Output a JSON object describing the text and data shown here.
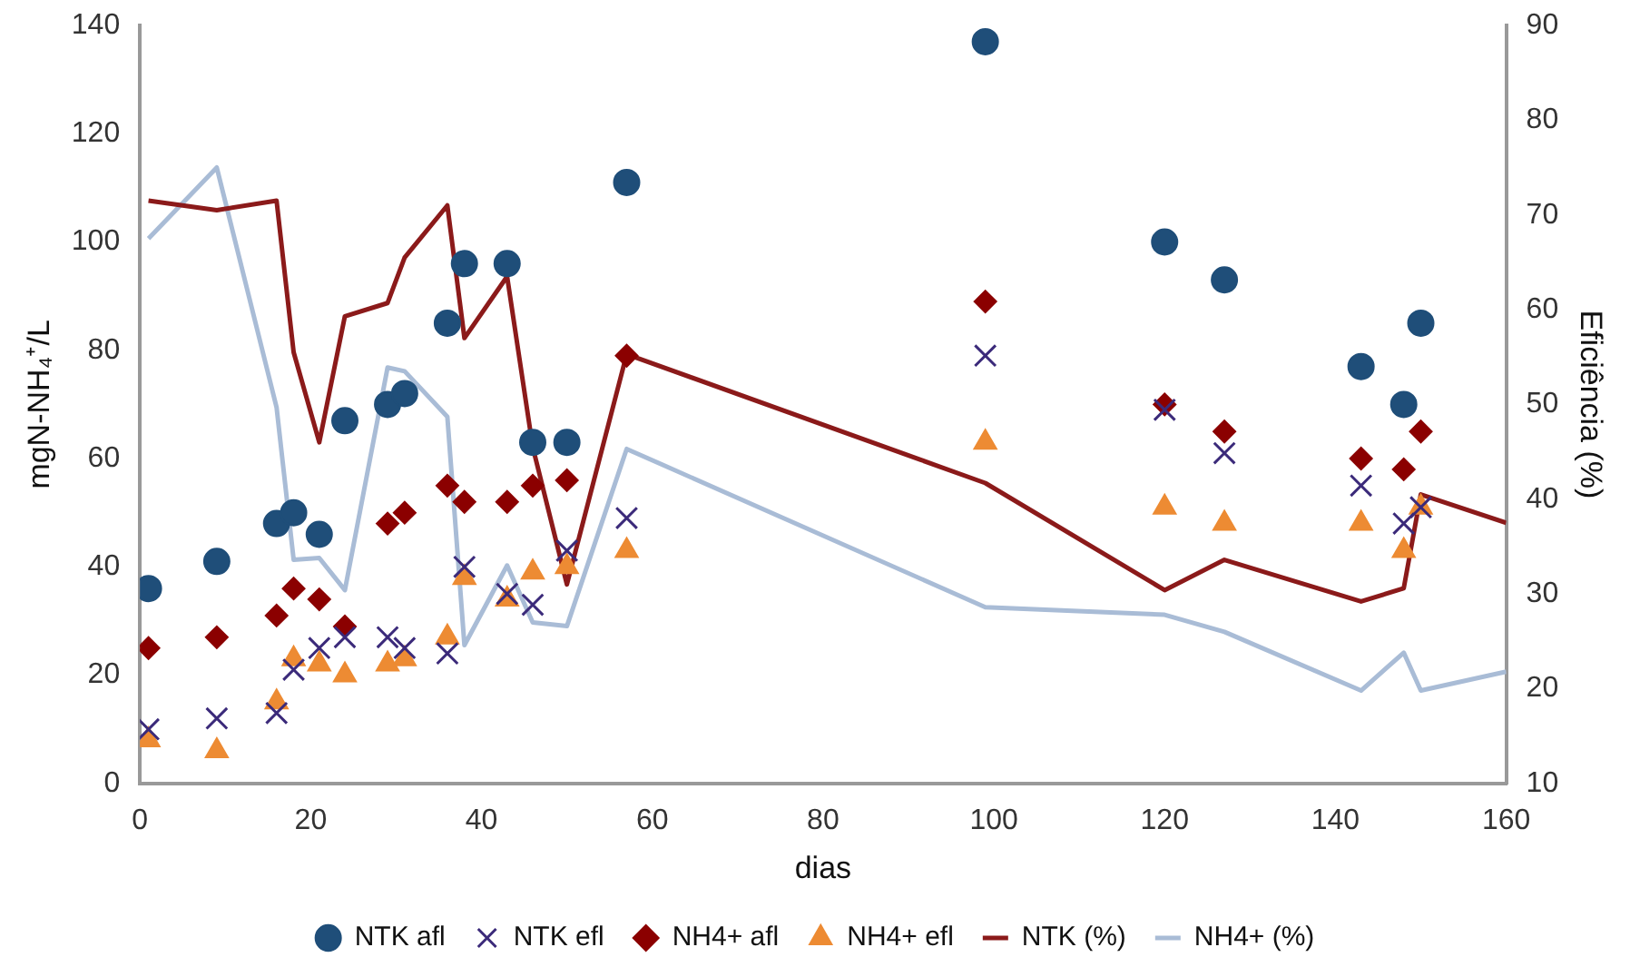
{
  "chart_data": {
    "type": "scatter",
    "xlabel": "dias",
    "ylabel": "mgN-NH₄⁺/L",
    "y2label": "Eficiência (%)",
    "xlim": [
      0,
      160
    ],
    "xticks": [
      0,
      20,
      40,
      60,
      80,
      100,
      120,
      140,
      160
    ],
    "ylim": [
      0,
      140
    ],
    "yticks": [
      0,
      20,
      40,
      60,
      80,
      100,
      120,
      140
    ],
    "y2lim": [
      10,
      90
    ],
    "y2ticks": [
      10,
      20,
      30,
      40,
      50,
      60,
      70,
      80,
      90
    ],
    "grid": false,
    "legend": "bottom",
    "x": [
      1,
      9,
      16,
      18,
      21,
      24,
      29,
      31,
      36,
      38,
      43,
      46,
      50,
      57,
      99,
      120,
      127,
      143,
      148,
      150
    ],
    "series": [
      {
        "name": "NTK afl",
        "type": "scatter",
        "marker": "circle",
        "color": "#1f4e79",
        "values": [
          36,
          41,
          48,
          50,
          46,
          67,
          70,
          72,
          85,
          96,
          96,
          63,
          63,
          111,
          137,
          100,
          93,
          77,
          70,
          85
        ]
      },
      {
        "name": "NTK efl",
        "type": "scatter",
        "marker": "cross",
        "color": "#3b2a7a",
        "values": [
          10,
          12,
          13,
          21,
          25,
          27,
          27,
          25,
          24,
          40,
          35,
          33,
          43,
          49,
          79,
          69,
          61,
          55,
          48,
          51
        ]
      },
      {
        "name": "NH4+ afl",
        "type": "scatter",
        "marker": "diamond",
        "color": "#8b0000",
        "values": [
          25,
          27,
          31,
          36,
          34,
          29,
          48,
          50,
          55,
          52,
          52,
          55,
          56,
          79,
          89,
          70,
          65,
          60,
          58,
          65
        ]
      },
      {
        "name": "NH4+ efl",
        "type": "scatter",
        "marker": "triangle",
        "color": "#ed8b33",
        "values": [
          8,
          6,
          15,
          23,
          22,
          20,
          22,
          23,
          27,
          38,
          34,
          39,
          40,
          43,
          63,
          51,
          48,
          48,
          43,
          51
        ]
      },
      {
        "name": "NTK (%)",
        "type": "line",
        "axis": "y2",
        "marker": "none",
        "color": "#8b1a1a",
        "x": [
          1,
          9,
          16,
          18,
          21,
          24,
          29,
          31,
          36,
          38,
          43,
          46,
          50,
          57,
          99,
          120,
          127,
          143,
          148,
          150,
          160
        ],
        "values": [
          71.5,
          70.5,
          71.5,
          55.5,
          46,
          59.3,
          60.7,
          65.5,
          71,
          57,
          63.5,
          45.5,
          31,
          55.3,
          41.7,
          30.4,
          33.6,
          29.2,
          30.6,
          40.5,
          37.5
        ]
      },
      {
        "name": "NH4+ (%)",
        "type": "line",
        "axis": "y2",
        "marker": "none",
        "color": "#a9bcd6",
        "x": [
          1,
          9,
          16,
          18,
          21,
          24,
          29,
          31,
          36,
          38,
          43,
          46,
          50,
          57,
          99,
          120,
          127,
          143,
          148,
          150,
          160
        ],
        "values": [
          67.5,
          75,
          49.7,
          33.6,
          33.8,
          30.4,
          53.9,
          53.5,
          48.7,
          24.6,
          33,
          27,
          26.6,
          45.3,
          28.6,
          27.8,
          26,
          19.8,
          23.8,
          19.8,
          21.8
        ]
      }
    ]
  }
}
